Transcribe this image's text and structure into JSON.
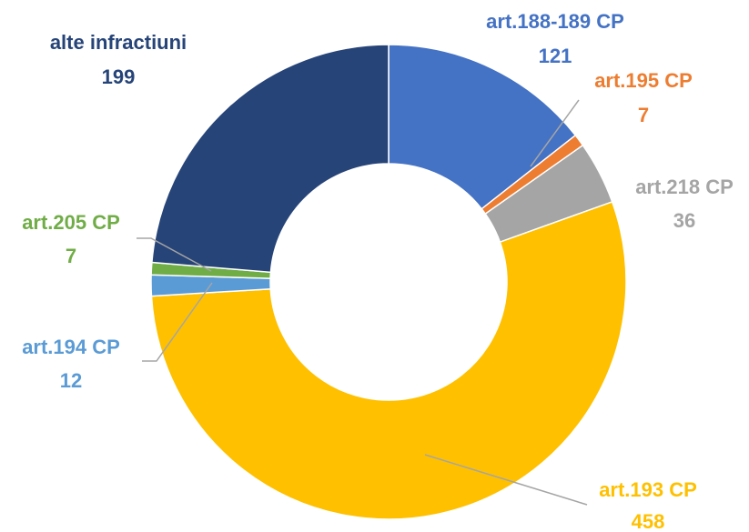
{
  "chart_data": {
    "type": "donut",
    "categories": [
      "art.188-189 CP",
      "art.195 CP",
      "art.218 CP",
      "art.193 CP",
      "art.194 CP",
      "art.205 CP",
      "alte infractiuni"
    ],
    "values": [
      121,
      7,
      36,
      458,
      12,
      7,
      199
    ],
    "colors": [
      "#4472c4",
      "#ed7d31",
      "#a5a5a5",
      "#ffc000",
      "#5b9bd5",
      "#70ad47",
      "#264478"
    ]
  }
}
